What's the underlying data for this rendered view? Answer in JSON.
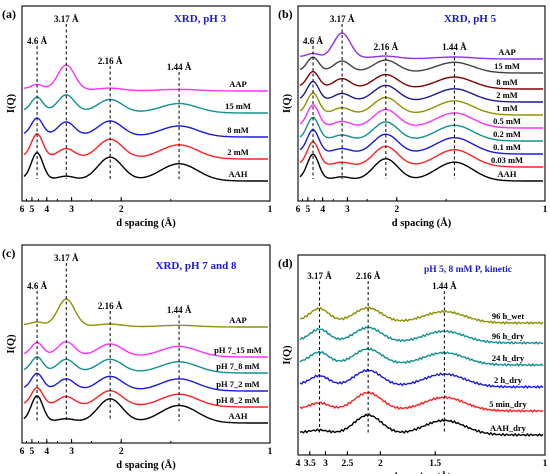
{
  "chart_data": [
    {
      "type": "line",
      "panel_label": "(a)",
      "title": "XRD, pH 3",
      "xlabel": "d spacing (Å)",
      "ylabel": "I(Q)",
      "x_reversed": true,
      "xlim_d": [
        6,
        1
      ],
      "x_ticks": [
        "6",
        "5",
        "4",
        "3",
        "2",
        "1"
      ],
      "peak_labels": [
        "4.6 Å",
        "3.17 Å",
        "2.16 Å",
        "1.44 Å"
      ],
      "peaks_d": [
        4.6,
        3.17,
        2.16,
        1.44
      ],
      "series": [
        {
          "name": "AAH",
          "color": "#000000",
          "peak_heights": [
            0.85,
            0.12,
            0.75,
            0.55
          ]
        },
        {
          "name": "2 mM",
          "color": "#ff2020",
          "peak_heights": [
            0.75,
            0.3,
            0.62,
            0.45
          ]
        },
        {
          "name": "8 mM",
          "color": "#1a1adc",
          "peak_heights": [
            0.55,
            0.45,
            0.5,
            0.35
          ]
        },
        {
          "name": "15 mM",
          "color": "#109090",
          "peak_heights": [
            0.45,
            0.55,
            0.42,
            0.3
          ]
        },
        {
          "name": "AAP",
          "color": "#ff30ff",
          "peak_heights": [
            0.15,
            0.8,
            0.08,
            0.05
          ]
        }
      ]
    },
    {
      "type": "line",
      "panel_label": "(b)",
      "title": "XRD, pH 5",
      "xlabel": "d spacing (Å)",
      "ylabel": "I(Q)",
      "x_reversed": true,
      "xlim_d": [
        6,
        1
      ],
      "x_ticks": [
        "6",
        "5",
        "4",
        "3",
        "2",
        "1"
      ],
      "peak_labels": [
        "4.6 Å",
        "3.17 Å",
        "2.16 Å",
        "1.44 Å"
      ],
      "peaks_d": [
        4.6,
        3.17,
        2.16,
        1.44
      ],
      "series": [
        {
          "name": "AAH",
          "color": "#000000",
          "peak_heights": [
            0.8,
            0.1,
            0.7,
            0.6
          ]
        },
        {
          "name": "0.03 mM",
          "color": "#ff2020",
          "peak_heights": [
            0.75,
            0.12,
            0.65,
            0.55
          ]
        },
        {
          "name": "0.1 mM",
          "color": "#1a1adc",
          "peak_heights": [
            0.72,
            0.14,
            0.62,
            0.52
          ]
        },
        {
          "name": "0.2 mM",
          "color": "#109090",
          "peak_heights": [
            0.7,
            0.16,
            0.6,
            0.5
          ]
        },
        {
          "name": "0.5 mM",
          "color": "#ff30ff",
          "peak_heights": [
            0.68,
            0.18,
            0.58,
            0.48
          ]
        },
        {
          "name": "1 mM",
          "color": "#909000",
          "peak_heights": [
            0.65,
            0.2,
            0.55,
            0.45
          ]
        },
        {
          "name": "2 mM",
          "color": "#1a1a90",
          "peak_heights": [
            0.6,
            0.24,
            0.52,
            0.42
          ]
        },
        {
          "name": "8 mM",
          "color": "#800000",
          "peak_heights": [
            0.5,
            0.3,
            0.45,
            0.38
          ]
        },
        {
          "name": "15 mM",
          "color": "#404040",
          "peak_heights": [
            0.45,
            0.35,
            0.4,
            0.34
          ]
        },
        {
          "name": "AAP",
          "color": "#9030e0",
          "peak_heights": [
            0.12,
            0.8,
            0.08,
            0.06
          ]
        }
      ]
    },
    {
      "type": "line",
      "panel_label": "(c)",
      "title": "XRD, pH 7 and 8",
      "xlabel": "d spacing (Å)",
      "ylabel": "I(Q)",
      "x_reversed": true,
      "xlim_d": [
        6,
        1
      ],
      "x_ticks": [
        "6",
        "5",
        "4",
        "3",
        "2",
        "1"
      ],
      "peak_labels": [
        "4.6 Å",
        "3.17 Å",
        "2.16 Å",
        "1.44 Å"
      ],
      "peaks_d": [
        4.6,
        3.17,
        2.16,
        1.44
      ],
      "series": [
        {
          "name": "AAH",
          "color": "#000000",
          "peak_heights": [
            0.8,
            0.1,
            0.75,
            0.55
          ]
        },
        {
          "name": "pH 8_2 mM",
          "color": "#ff2020",
          "peak_heights": [
            0.55,
            0.3,
            0.5,
            0.4
          ]
        },
        {
          "name": "pH 7_2 mM",
          "color": "#1a1adc",
          "peak_heights": [
            0.5,
            0.35,
            0.45,
            0.38
          ]
        },
        {
          "name": "pH 7_8 mM",
          "color": "#109090",
          "peak_heights": [
            0.45,
            0.4,
            0.42,
            0.35
          ]
        },
        {
          "name": "pH 7_15 mM",
          "color": "#ff30ff",
          "peak_heights": [
            0.4,
            0.45,
            0.4,
            0.33
          ]
        },
        {
          "name": "AAP",
          "color": "#909000",
          "peak_heights": [
            0.1,
            0.85,
            0.08,
            0.05
          ]
        }
      ]
    },
    {
      "type": "line",
      "panel_label": "(d)",
      "title": "pH 5, 8 mM P, kinetic",
      "xlabel": "d spacing (Å)",
      "ylabel": "I(Q)",
      "x_reversed": true,
      "xlim_d": [
        4,
        1
      ],
      "x_ticks": [
        "4",
        "3.5",
        "3",
        "2.5",
        "2",
        "1.5",
        "1"
      ],
      "peak_labels": [
        "3.17 Å",
        "2.16 Å",
        "1.44 Å"
      ],
      "peaks_d": [
        3.17,
        2.16,
        1.44
      ],
      "series": [
        {
          "name": "AAH_dry",
          "color": "#000000",
          "peak_heights": [
            0.1,
            0.6,
            0.45
          ]
        },
        {
          "name": "5 min_dry",
          "color": "#ff2020",
          "peak_heights": [
            0.2,
            0.55,
            0.42
          ]
        },
        {
          "name": "2 h_dry",
          "color": "#1a1adc",
          "peak_heights": [
            0.3,
            0.5,
            0.4
          ]
        },
        {
          "name": "24 h_dry",
          "color": "#109090",
          "peak_heights": [
            0.35,
            0.48,
            0.38
          ]
        },
        {
          "name": "96 h_dry",
          "color": "#109090",
          "peak_heights": [
            0.38,
            0.46,
            0.36
          ]
        },
        {
          "name": "96 h_wet",
          "color": "#909000",
          "peak_heights": [
            0.4,
            0.45,
            0.35
          ]
        }
      ]
    }
  ]
}
